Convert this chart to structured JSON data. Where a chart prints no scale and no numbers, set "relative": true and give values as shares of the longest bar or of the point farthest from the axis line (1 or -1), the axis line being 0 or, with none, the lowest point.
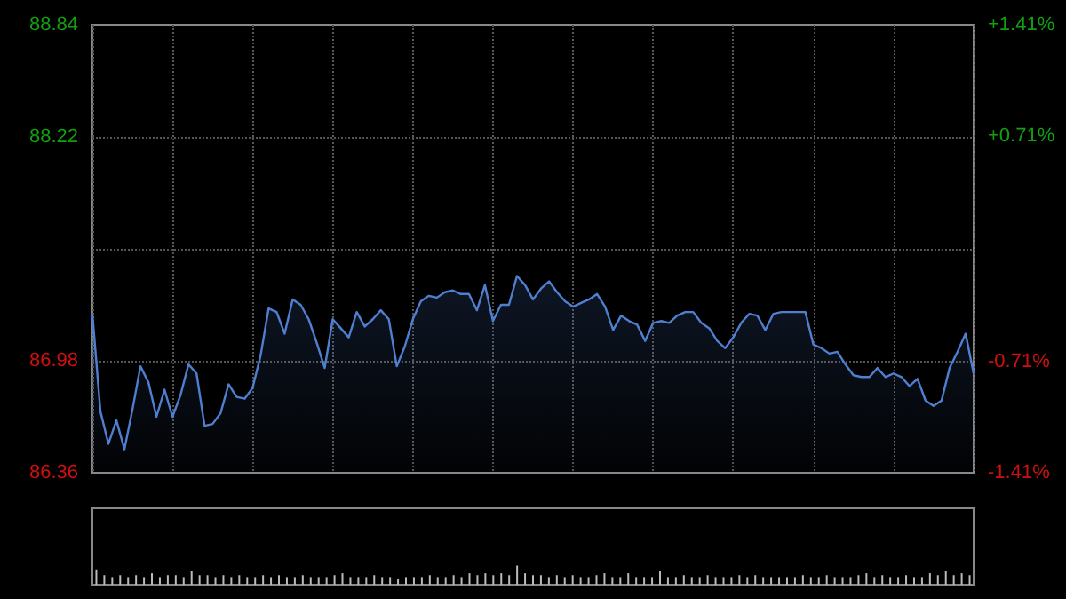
{
  "chart_data": [
    {
      "type": "area",
      "categories": [
        null,
        null,
        null,
        null,
        null,
        null,
        null,
        null,
        null,
        null,
        null,
        null,
        null,
        null,
        null,
        null,
        null,
        null,
        null,
        null,
        null,
        null,
        null,
        null,
        null,
        null,
        null,
        null,
        null,
        null,
        null,
        null,
        null,
        null,
        null,
        null,
        null,
        null,
        null,
        null,
        null,
        null,
        null,
        null,
        null,
        null,
        null,
        null,
        null,
        null,
        null,
        null,
        null,
        null,
        null,
        null,
        null,
        null,
        null,
        null,
        null,
        null,
        null,
        null,
        null,
        null,
        null,
        null,
        null,
        null,
        null,
        null,
        null,
        null,
        null,
        null,
        null,
        null,
        null,
        null,
        null,
        null,
        null,
        null,
        null,
        null,
        null,
        null,
        null,
        null,
        null,
        null,
        null,
        null,
        null,
        null,
        null,
        null,
        null,
        null,
        null,
        null,
        null,
        null,
        null,
        null,
        null,
        null,
        null,
        null,
        null
      ],
      "series": [
        {
          "color": "#4f7fd0",
          "values": [
            87.24,
            86.7,
            86.52,
            86.65,
            86.49,
            86.71,
            86.95,
            86.86,
            86.67,
            86.82,
            86.67,
            86.79,
            86.96,
            86.91,
            86.62,
            86.63,
            86.69,
            86.85,
            86.78,
            86.77,
            86.83,
            87.01,
            87.27,
            87.25,
            87.13,
            87.32,
            87.29,
            87.21,
            87.08,
            86.94,
            87.21,
            87.16,
            87.11,
            87.25,
            87.17,
            87.21,
            87.26,
            87.21,
            86.95,
            87.06,
            87.21,
            87.31,
            87.34,
            87.33,
            87.36,
            87.37,
            87.35,
            87.35,
            87.26,
            87.4,
            87.2,
            87.29,
            87.29,
            87.45,
            87.4,
            87.32,
            87.38,
            87.42,
            87.36,
            87.31,
            87.28,
            87.3,
            87.32,
            87.35,
            87.28,
            87.15,
            87.23,
            87.2,
            87.18,
            87.09,
            87.19,
            87.2,
            87.19,
            87.23,
            87.25,
            87.25,
            87.19,
            87.16,
            87.09,
            87.05,
            87.11,
            87.19,
            87.24,
            87.23,
            87.15,
            87.24,
            87.25,
            87.25,
            87.25,
            87.25,
            87.07,
            87.05,
            87.02,
            87.03,
            86.96,
            86.9,
            86.89,
            86.89,
            86.94,
            86.89,
            86.91,
            86.89,
            86.84,
            86.88,
            86.76,
            86.73,
            86.76,
            86.94,
            87.03,
            87.13,
            86.91
          ]
        }
      ],
      "ylim": [
        86.36,
        88.84
      ],
      "yticks": [
        86.36,
        86.98,
        {
          "value": 87.6,
          "label": null
        },
        88.22,
        88.84
      ],
      "y2lim": [
        -1.41,
        1.41
      ],
      "y2ticks": [
        {
          "value": -1.41,
          "label": "-1.41%"
        },
        {
          "value": -0.71,
          "label": "-0.71%"
        },
        {
          "value": 0,
          "label": null
        },
        {
          "value": 0.71,
          "label": "+0.71%"
        },
        {
          "value": 1.41,
          "label": "+1.41%"
        }
      ],
      "grid": true
    },
    {
      "type": "bar",
      "relative": true,
      "categories": [
        null,
        null,
        null,
        null,
        null,
        null,
        null,
        null,
        null,
        null,
        null,
        null,
        null,
        null,
        null,
        null,
        null,
        null,
        null,
        null,
        null,
        null,
        null,
        null,
        null,
        null,
        null,
        null,
        null,
        null,
        null,
        null,
        null,
        null,
        null,
        null,
        null,
        null,
        null,
        null,
        null,
        null,
        null,
        null,
        null,
        null,
        null,
        null,
        null,
        null,
        null,
        null,
        null,
        null,
        null,
        null,
        null,
        null,
        null,
        null,
        null,
        null,
        null,
        null,
        null,
        null,
        null,
        null,
        null,
        null,
        null,
        null,
        null,
        null,
        null,
        null,
        null,
        null,
        null,
        null,
        null,
        null,
        null,
        null,
        null,
        null,
        null,
        null,
        null,
        null,
        null,
        null,
        null,
        null,
        null,
        null,
        null,
        null,
        null,
        null,
        null,
        null,
        null,
        null,
        null,
        null,
        null,
        null,
        null,
        null,
        null
      ],
      "series": [
        {
          "color": "#bbbbbb",
          "values": [
            0.8,
            0.5,
            0.4,
            0.5,
            0.4,
            0.5,
            0.4,
            0.6,
            0.4,
            0.5,
            0.5,
            0.4,
            0.7,
            0.5,
            0.5,
            0.4,
            0.5,
            0.4,
            0.5,
            0.4,
            0.4,
            0.5,
            0.4,
            0.5,
            0.4,
            0.4,
            0.5,
            0.4,
            0.4,
            0.4,
            0.5,
            0.6,
            0.4,
            0.4,
            0.4,
            0.5,
            0.4,
            0.4,
            0.3,
            0.4,
            0.4,
            0.4,
            0.5,
            0.4,
            0.4,
            0.5,
            0.4,
            0.6,
            0.5,
            0.6,
            0.5,
            0.6,
            0.5,
            1.0,
            0.6,
            0.5,
            0.5,
            0.4,
            0.5,
            0.4,
            0.5,
            0.4,
            0.4,
            0.5,
            0.6,
            0.4,
            0.4,
            0.6,
            0.4,
            0.4,
            0.4,
            0.7,
            0.4,
            0.4,
            0.5,
            0.4,
            0.4,
            0.5,
            0.4,
            0.4,
            0.4,
            0.5,
            0.4,
            0.5,
            0.4,
            0.4,
            0.4,
            0.4,
            0.4,
            0.5,
            0.4,
            0.4,
            0.5,
            0.4,
            0.4,
            0.4,
            0.5,
            0.6,
            0.4,
            0.5,
            0.4,
            0.4,
            0.5,
            0.4,
            0.4,
            0.6,
            0.5,
            0.7,
            0.5,
            0.6,
            0.5
          ]
        }
      ]
    }
  ]
}
